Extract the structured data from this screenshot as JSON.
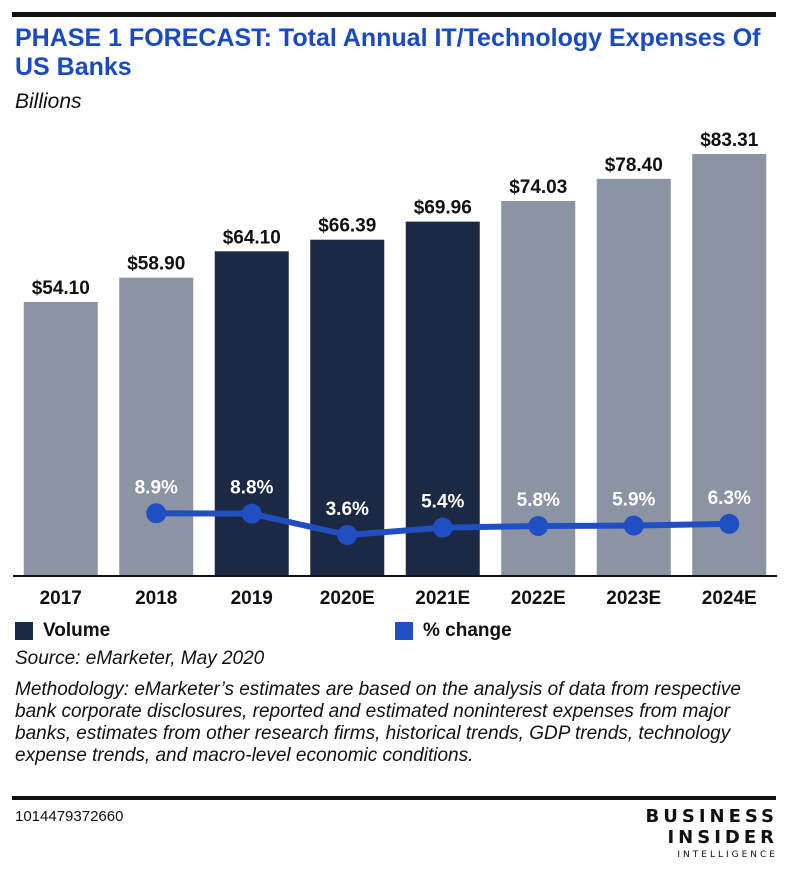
{
  "header": {
    "title": "PHASE 1 FORECAST: Total Annual IT/Technology Expenses Of US Banks",
    "subtitle": "Billions"
  },
  "legend": {
    "volume_label": "Volume",
    "change_label": "% change"
  },
  "footer": {
    "source": "Source: eMarketer, May 2020",
    "methodology": "Methodology: eMarketer’s estimates are based on the analysis of data from respective bank corporate disclosures, reported and estimated noninterest expenses from major banks, estimates from other research firms, historical trends, GDP trends, technology expense trends, and macro-level economic conditions.",
    "chart_id": "1014479372660"
  },
  "logo": {
    "line1": "BUSINESS",
    "line2": "INSIDER",
    "line3": "INTELLIGENCE"
  },
  "colors": {
    "title": "#1a49c4",
    "bar_grey": "#8a94a3",
    "bar_navy": "#1b2944",
    "line_blue": "#1f4fc1"
  },
  "chart_data": {
    "type": "bar",
    "categories": [
      "2017",
      "2018",
      "2019",
      "2020E",
      "2021E",
      "2022E",
      "2023E",
      "2024E"
    ],
    "series": [
      {
        "name": "Volume",
        "type": "bar",
        "values": [
          54.1,
          58.9,
          64.1,
          66.39,
          69.96,
          74.03,
          78.4,
          83.31
        ],
        "labels": [
          "$54.10",
          "$58.90",
          "$64.10",
          "$66.39",
          "$69.96",
          "$74.03",
          "$78.40",
          "$83.31"
        ],
        "bar_colors": [
          "#8a94a3",
          "#8a94a3",
          "#1b2944",
          "#1b2944",
          "#1b2944",
          "#8a94a3",
          "#8a94a3",
          "#8a94a3"
        ]
      },
      {
        "name": "% change",
        "type": "line",
        "values": [
          null,
          8.9,
          8.8,
          3.6,
          5.4,
          5.8,
          5.9,
          6.3
        ],
        "labels": [
          "",
          "8.9%",
          "8.8%",
          "3.6%",
          "5.4%",
          "5.8%",
          "5.9%",
          "6.3%"
        ]
      }
    ],
    "ylim": [
      0,
      85
    ],
    "grid": false,
    "legend_position": "bottom"
  }
}
